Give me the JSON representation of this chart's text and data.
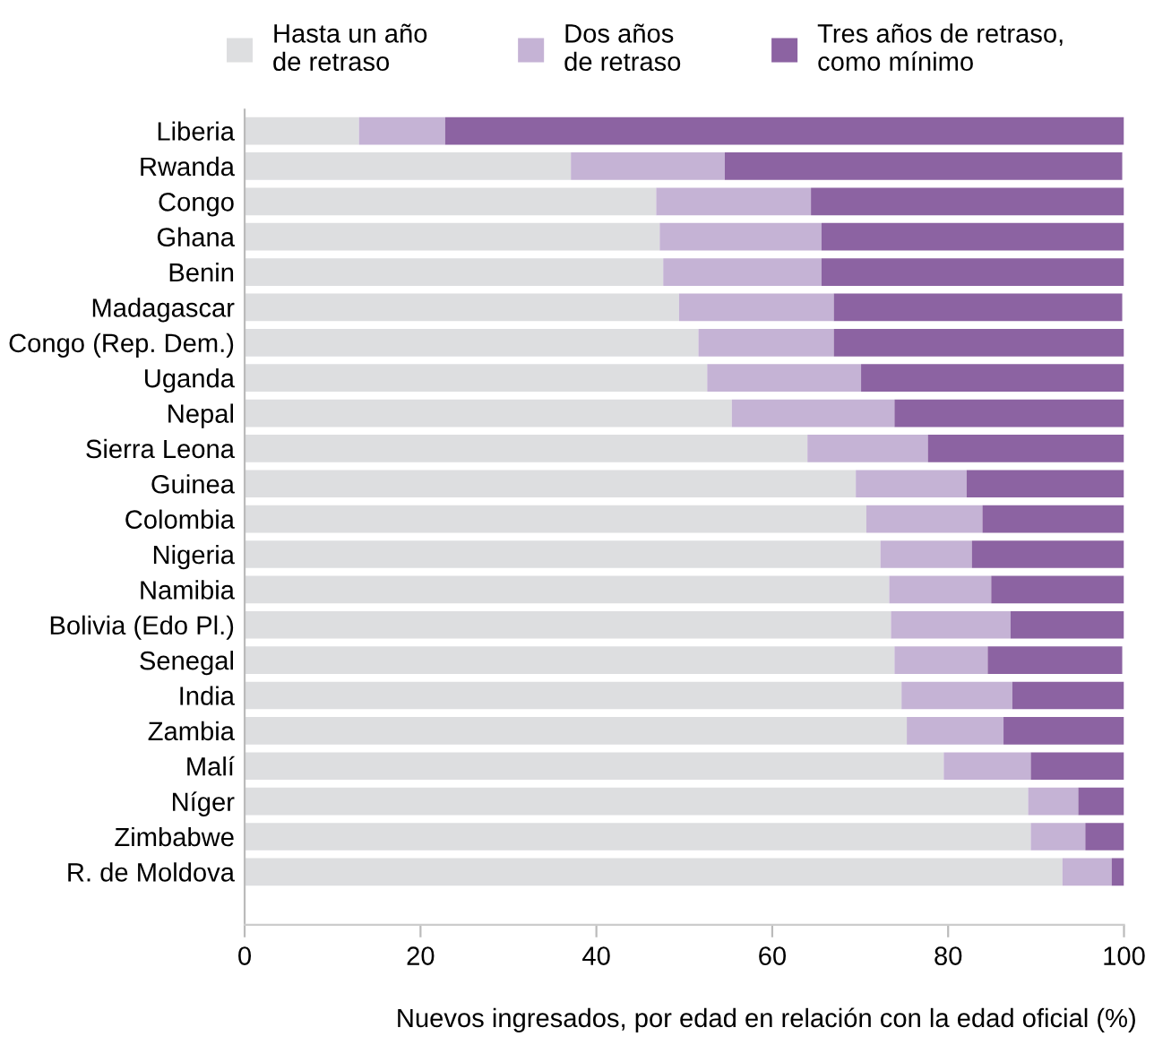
{
  "chart_data": {
    "type": "bar",
    "orientation": "horizontal",
    "stacked": true,
    "categories": [
      "Liberia",
      "Rwanda",
      "Congo",
      "Ghana",
      "Benin",
      "Madagascar",
      "Congo (Rep. Dem.)",
      "Uganda",
      "Nepal",
      "Sierra Leona",
      "Guinea",
      "Colombia",
      "Nigeria",
      "Namibia",
      "Bolivia (Edo Pl.)",
      "Senegal",
      "India",
      "Zambia",
      "Malí",
      "Níger",
      "Zimbabwe",
      "R. de Moldova"
    ],
    "series": [
      {
        "name": "Hasta un año\nde retraso",
        "color": "#dddee0",
        "values": [
          13.0,
          37.1,
          46.8,
          47.2,
          47.6,
          49.4,
          51.6,
          52.6,
          55.4,
          64.0,
          69.5,
          70.7,
          72.3,
          73.3,
          73.5,
          73.9,
          74.7,
          75.3,
          79.5,
          89.1,
          89.4,
          93.0
        ]
      },
      {
        "name": "Dos años\nde retraso",
        "color": "#c5b3d5",
        "values": [
          9.8,
          17.5,
          17.6,
          18.4,
          18.0,
          17.6,
          15.4,
          17.5,
          18.5,
          13.7,
          12.6,
          13.2,
          10.4,
          11.6,
          13.6,
          10.6,
          12.6,
          11.0,
          9.9,
          5.7,
          6.2,
          5.6
        ]
      },
      {
        "name": "Tres años de retraso,\ncomo mínimo",
        "color": "#8c63a2",
        "values": [
          77.2,
          45.2,
          35.6,
          34.4,
          34.4,
          32.8,
          33.0,
          29.9,
          26.1,
          22.3,
          17.9,
          16.1,
          17.3,
          15.1,
          12.9,
          15.3,
          12.7,
          13.7,
          10.6,
          5.2,
          4.4,
          1.4
        ]
      }
    ],
    "xlim": [
      0,
      100
    ],
    "xticks": [
      0,
      20,
      40,
      60,
      80,
      100
    ],
    "xlabel": "Nuevos ingresados, por edad en relación con la edad oficial (%)",
    "legend": "top",
    "grid": false
  }
}
